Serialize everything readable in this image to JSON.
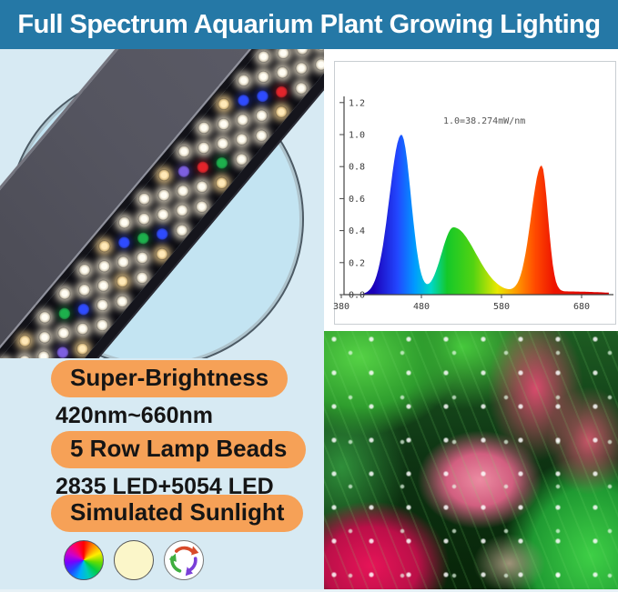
{
  "header": {
    "title": "Full Spectrum Aquarium Plant Growing Lighting"
  },
  "colors": {
    "header_bg": "#2578a6",
    "header_text": "#ffffff",
    "panel_bg": "#d7eaf3",
    "disc_fill": "#c3e4f2",
    "pill_bg": "#f6a157",
    "text": "#151515",
    "chart_bg": "#ffffff"
  },
  "features": [
    {
      "pill": "Super-Brightness",
      "detail": "420nm~660nm"
    },
    {
      "pill": "5 Row Lamp Beads",
      "detail": "2835 LED+5054 LED"
    },
    {
      "pill": "Simulated Sunlight",
      "detail": ""
    }
  ],
  "light_modes": [
    {
      "name": "rgb-color-wheel"
    },
    {
      "name": "warm-white"
    },
    {
      "name": "color-cycle"
    }
  ],
  "led_panel": {
    "row_count": 5,
    "palette": {
      "w": "#fffdf4",
      "c": "#ffe9b8",
      "b": "#2e4bff",
      "g": "#1db04c",
      "r": "#e3242b",
      "p": "#7d5fe0"
    },
    "rows": [
      [
        "c",
        "w",
        "w",
        "c",
        "w",
        "w",
        "w",
        "c",
        "w",
        "w",
        "c",
        "w",
        "w",
        "c",
        "w",
        "w",
        "w",
        "c"
      ],
      [
        "w",
        "b",
        "w",
        "w",
        "g",
        "w",
        "w",
        "b",
        "w",
        "w",
        "p",
        "w",
        "w",
        "b",
        "w",
        "w",
        "g",
        "w"
      ],
      [
        "w",
        "w",
        "r",
        "w",
        "w",
        "b",
        "w",
        "w",
        "g",
        "w",
        "w",
        "r",
        "w",
        "w",
        "b",
        "w",
        "w",
        "r"
      ],
      [
        "c",
        "w",
        "w",
        "p",
        "w",
        "w",
        "c",
        "w",
        "b",
        "w",
        "w",
        "g",
        "w",
        "w",
        "r",
        "w",
        "w",
        "c"
      ],
      [
        "w",
        "c",
        "w",
        "w",
        "c",
        "w",
        "w",
        "w",
        "c",
        "w",
        "w",
        "c",
        "w",
        "w",
        "c",
        "w",
        "w",
        "c"
      ]
    ]
  },
  "chart_data": {
    "type": "area",
    "annotation": "1.0=38.274mW/nm",
    "x_ticks": [
      380,
      480,
      580,
      680
    ],
    "y_ticks": [
      "0.0",
      "0.2",
      "0.4",
      "0.6",
      "0.8",
      "1.0",
      "1.2"
    ],
    "xlim": [
      380,
      715
    ],
    "ylim": [
      0,
      1.28
    ],
    "peaks": [
      {
        "color": "blue",
        "wavelength_nm": 455,
        "relative_intensity": 1.0
      },
      {
        "color": "green",
        "wavelength_nm": 520,
        "relative_intensity": 0.42
      },
      {
        "color": "red",
        "wavelength_nm": 630,
        "relative_intensity": 0.79
      }
    ],
    "valleys": [
      {
        "wavelength_nm": 487,
        "relative_intensity": 0.08
      },
      {
        "wavelength_nm": 577,
        "relative_intensity": 0.05
      }
    ],
    "fill": "visible-spectrum-gradient",
    "grid": false,
    "legend": false
  },
  "photo": {
    "description": "Aquarium plants: green stems with pink and red Ludwigia and oxygen bubbles"
  }
}
